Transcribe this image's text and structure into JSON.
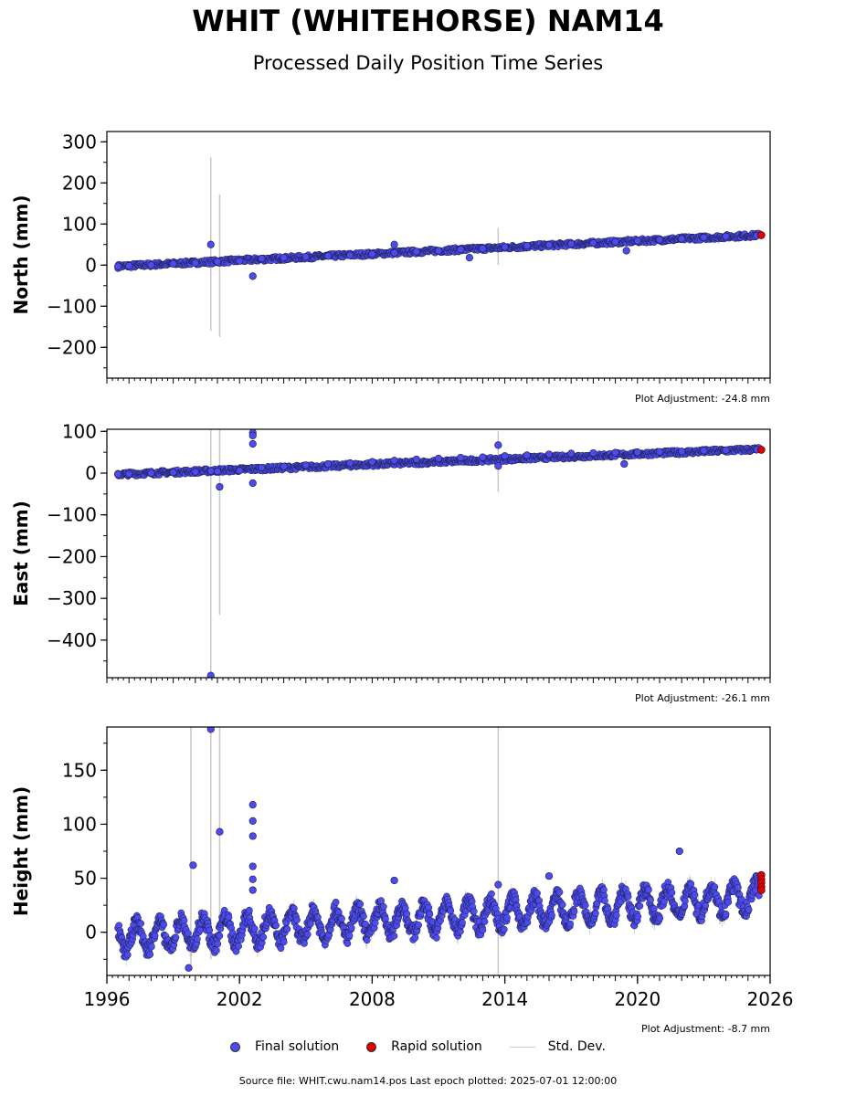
{
  "title": "WHIT (WHITEHORSE) NAM14",
  "subtitle": "Processed Daily Position Time Series",
  "legend": {
    "final": "Final solution",
    "rapid": "Rapid solution",
    "std": "Std. Dev."
  },
  "footer": "Source file: WHIT.cwu.nam14.pos  Last epoch plotted: 2025-07-01 12:00:00",
  "colors": {
    "final": "#4b4bef",
    "rapid": "#e00000",
    "std": "#c8c8c8",
    "edge": "#1a1a3a"
  },
  "chart_data": [
    {
      "type": "scatter",
      "ylabel": "North (mm)",
      "xlim": [
        1996,
        2026
      ],
      "ylim": [
        -275,
        325
      ],
      "yticks": [
        -200,
        -100,
        0,
        100,
        200,
        300
      ],
      "adjustment": "Plot Adjustment: -24.8 mm",
      "trend": {
        "x": [
          1996.5,
          2025.5
        ],
        "y": [
          -3,
          73
        ]
      },
      "series": [
        {
          "kind": "final",
          "x": [
            1996.5,
            1997,
            1998,
            1999,
            2000,
            2001,
            2002,
            2003,
            2004,
            2005,
            2006,
            2007,
            2008,
            2009,
            2010,
            2011,
            2012,
            2013,
            2014,
            2015,
            2016,
            2017,
            2018,
            2019,
            2020,
            2021,
            2022,
            2023,
            2024,
            2025.4
          ],
          "y": [
            -3,
            -2,
            0,
            3,
            5,
            8,
            10,
            16,
            18,
            20,
            22,
            24,
            27,
            30,
            33,
            35,
            38,
            40,
            44,
            47,
            49,
            52,
            54,
            57,
            59,
            62,
            64,
            67,
            70,
            72
          ]
        },
        {
          "kind": "outlier",
          "x": [
            2000.7,
            2002.6,
            2009,
            2012.4,
            2019.5
          ],
          "y": [
            50,
            -27,
            50,
            18,
            35
          ]
        },
        {
          "kind": "rapid",
          "x": [
            2025.6
          ],
          "y": [
            73
          ]
        },
        {
          "kind": "std",
          "x": [
            2000.7,
            2001.1,
            2013.7
          ],
          "lo": [
            -160,
            -175,
            0
          ],
          "hi": [
            262,
            172,
            90
          ]
        }
      ]
    },
    {
      "type": "scatter",
      "ylabel": "East (mm)",
      "xlim": [
        1996,
        2026
      ],
      "ylim": [
        -490,
        105
      ],
      "yticks": [
        -400,
        -300,
        -200,
        -100,
        0,
        100
      ],
      "adjustment": "Plot Adjustment: -26.1 mm",
      "trend": {
        "x": [
          1996.5,
          2025.5
        ],
        "y": [
          -3,
          57
        ]
      },
      "series": [
        {
          "kind": "final",
          "x": [
            1996.5,
            1997,
            1998,
            1999,
            2000,
            2001,
            2002,
            2003,
            2004,
            2005,
            2006,
            2007,
            2008,
            2009,
            2010,
            2011,
            2012,
            2013,
            2014,
            2015,
            2016,
            2017,
            2018,
            2019,
            2020,
            2021,
            2022,
            2023,
            2024,
            2025.4
          ],
          "y": [
            -3,
            -2,
            0,
            2,
            3,
            4,
            6,
            13,
            16,
            19,
            22,
            24,
            27,
            30,
            33,
            35,
            37,
            38,
            41,
            43,
            45,
            47,
            48,
            49,
            50,
            51,
            52,
            54,
            55,
            56
          ]
        },
        {
          "kind": "outlier",
          "x": [
            2000.7,
            2001.1,
            2002.6,
            2002.6,
            2002.6,
            2002.6,
            2013.7,
            2013.7,
            2019.4,
            2000.7
          ],
          "y": [
            5,
            -33,
            97,
            90,
            70,
            -24,
            67,
            17,
            22,
            -485
          ]
        },
        {
          "kind": "rapid",
          "x": [
            2025.6
          ],
          "y": [
            56
          ]
        },
        {
          "kind": "std",
          "x": [
            2000.7,
            2001.1,
            2013.7
          ],
          "lo": [
            -490,
            -340,
            -45
          ],
          "hi": [
            105,
            105,
            100
          ]
        }
      ]
    },
    {
      "type": "scatter",
      "ylabel": "Height (mm)",
      "xlim": [
        1996,
        2026
      ],
      "ylim": [
        -40,
        190
      ],
      "yticks": [
        0,
        50,
        100,
        150
      ],
      "xticks": [
        1996,
        2002,
        2008,
        2014,
        2020,
        2026
      ],
      "adjustment": "Plot Adjustment: -8.7 mm",
      "seasonal": {
        "base0": -5,
        "slope": 1.3,
        "amp": 13,
        "step": 0.01
      },
      "series": [
        {
          "kind": "outlier",
          "x": [
            1999.9,
            2000.7,
            2001.1,
            2002.6,
            2002.6,
            2002.6,
            2002.6,
            2002.6,
            2002.6,
            2009,
            2013.7,
            2016,
            2021.9,
            1999.7
          ],
          "y": [
            62,
            188,
            93,
            118,
            103,
            89,
            61,
            49,
            39,
            48,
            44,
            52,
            75,
            -33
          ]
        },
        {
          "kind": "rapid",
          "x": [
            2025.6,
            2025.6,
            2025.6,
            2025.6,
            2025.6
          ],
          "y": [
            53,
            49,
            46,
            42,
            39
          ]
        },
        {
          "kind": "std",
          "x": [
            1999.8,
            2000.7,
            2001.1,
            2013.7
          ],
          "lo": [
            -30,
            -25,
            -20,
            -40
          ],
          "hi": [
            190,
            190,
            190,
            190
          ]
        }
      ]
    }
  ]
}
